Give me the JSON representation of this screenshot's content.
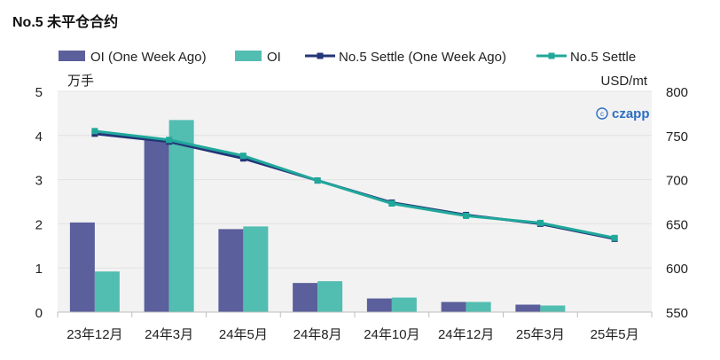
{
  "chart_data": {
    "type": "bar+line",
    "title": "No.5 未平仓合约",
    "categories": [
      "23年12月",
      "24年3月",
      "24年5月",
      "24年8月",
      "24年10月",
      "24年12月",
      "25年3月",
      "25年5月"
    ],
    "series": [
      {
        "name": "OI (One Week Ago)",
        "kind": "bar",
        "axis": "left",
        "color": "#5b5f9b",
        "values": [
          2.03,
          3.9,
          1.88,
          0.66,
          0.31,
          0.23,
          0.17,
          null
        ]
      },
      {
        "name": "OI",
        "kind": "bar",
        "axis": "left",
        "color": "#52bdb1",
        "values": [
          0.92,
          4.35,
          1.94,
          0.7,
          0.33,
          0.23,
          0.15,
          null
        ]
      },
      {
        "name": "No.5 Settle (One Week Ago)",
        "kind": "line",
        "axis": "right",
        "color": "#243578",
        "values": [
          752,
          743,
          724,
          699,
          674,
          660,
          650,
          633
        ]
      },
      {
        "name": "No.5 Settle",
        "kind": "line",
        "axis": "right",
        "color": "#20a89b",
        "values": [
          755,
          745,
          727,
          699,
          673,
          659,
          651,
          634
        ]
      }
    ],
    "left_axis": {
      "label": "万手",
      "min": 0,
      "max": 5,
      "ticks": [
        "0",
        "1",
        "2",
        "3",
        "4",
        "5"
      ]
    },
    "right_axis": {
      "label": "USD/mt",
      "min": 550,
      "max": 800,
      "ticks": [
        "550",
        "600",
        "650",
        "700",
        "750",
        "800"
      ]
    },
    "legend_position": "top",
    "watermark": "czapp"
  }
}
